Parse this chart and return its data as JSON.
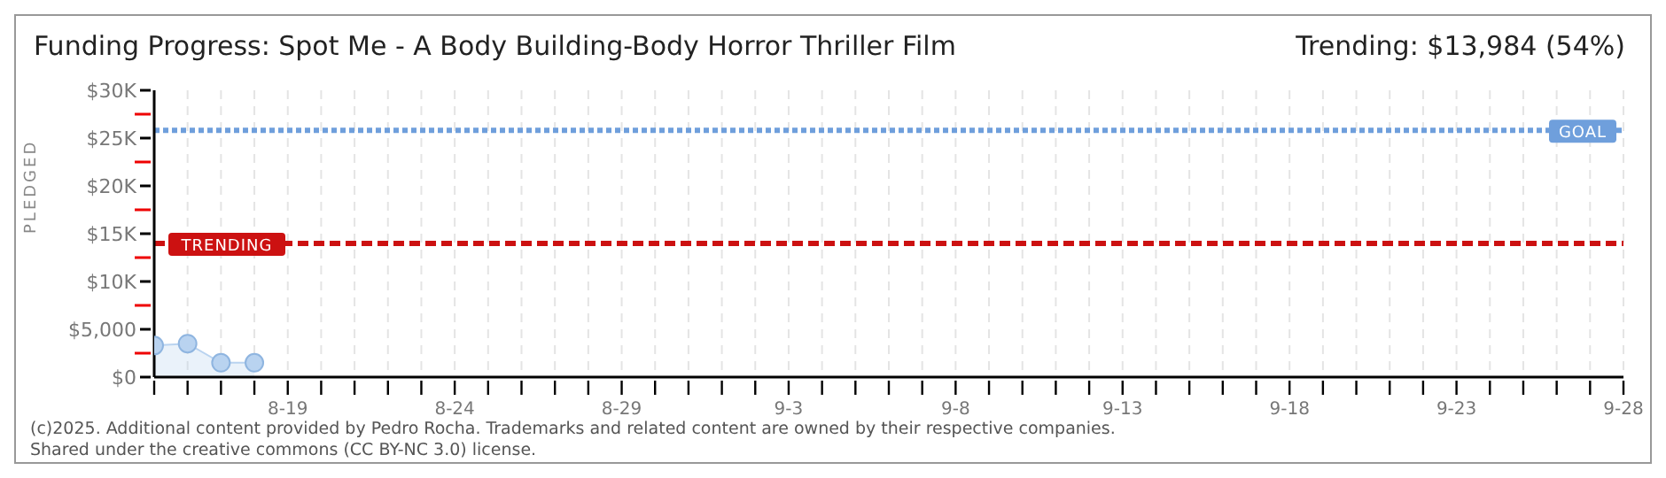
{
  "chart_data": {
    "type": "area",
    "title": "Funding Progress: Spot Me - A Body Building-Body Horror Thriller Film",
    "ylabel": "PLEDGED",
    "annotations": [
      "Trending: $13,984 (54%)",
      "(c)2025. Additional content provided by Pedro Rocha. Trademarks and related content are owned by their respective companies.",
      "Shared under the creative commons (CC BY-NC 3.0) license."
    ],
    "x": [
      "--08-15",
      "--08-16",
      "--08-17",
      "--08-18"
    ],
    "series": [
      {
        "color": "#b9d3f0",
        "values": [
          3300,
          3500,
          1500,
          1500
        ]
      }
    ],
    "marker": "circle",
    "grid": true,
    "xlim": [
      "--08-15",
      "--09-28"
    ],
    "xticks": [
      {
        "value": "--08-15",
        "label": null
      },
      {
        "value": "--08-16",
        "label": null
      },
      {
        "value": "--08-17",
        "label": null
      },
      {
        "value": "--08-18",
        "label": null
      },
      {
        "value": "--08-19",
        "label": "8-19"
      },
      {
        "value": "--08-20",
        "label": null
      },
      {
        "value": "--08-21",
        "label": null
      },
      {
        "value": "--08-22",
        "label": null
      },
      {
        "value": "--08-23",
        "label": null
      },
      {
        "value": "--08-24",
        "label": "8-24"
      },
      {
        "value": "--08-25",
        "label": null
      },
      {
        "value": "--08-26",
        "label": null
      },
      {
        "value": "--08-27",
        "label": null
      },
      {
        "value": "--08-28",
        "label": null
      },
      {
        "value": "--08-29",
        "label": "8-29"
      },
      {
        "value": "--08-30",
        "label": null
      },
      {
        "value": "--08-31",
        "label": null
      },
      {
        "value": "--09-01",
        "label": null
      },
      {
        "value": "--09-02",
        "label": null
      },
      {
        "value": "--09-03",
        "label": "9-3"
      },
      {
        "value": "--09-04",
        "label": null
      },
      {
        "value": "--09-05",
        "label": null
      },
      {
        "value": "--09-06",
        "label": null
      },
      {
        "value": "--09-07",
        "label": null
      },
      {
        "value": "--09-08",
        "label": "9-8"
      },
      {
        "value": "--09-09",
        "label": null
      },
      {
        "value": "--09-10",
        "label": null
      },
      {
        "value": "--09-11",
        "label": null
      },
      {
        "value": "--09-12",
        "label": null
      },
      {
        "value": "--09-13",
        "label": "9-13"
      },
      {
        "value": "--09-14",
        "label": null
      },
      {
        "value": "--09-15",
        "label": null
      },
      {
        "value": "--09-16",
        "label": null
      },
      {
        "value": "--09-17",
        "label": null
      },
      {
        "value": "--09-18",
        "label": "9-18"
      },
      {
        "value": "--09-19",
        "label": null
      },
      {
        "value": "--09-20",
        "label": null
      },
      {
        "value": "--09-21",
        "label": null
      },
      {
        "value": "--09-22",
        "label": null
      },
      {
        "value": "--09-23",
        "label": "9-23"
      },
      {
        "value": "--09-24",
        "label": null
      },
      {
        "value": "--09-25",
        "label": null
      },
      {
        "value": "--09-26",
        "label": null
      },
      {
        "value": "--09-27",
        "label": null
      },
      {
        "value": "--09-28",
        "label": "9-28"
      }
    ],
    "ylim": [
      0,
      30000
    ],
    "yticks": [
      {
        "value": 0,
        "label": "$0"
      },
      {
        "value": 2500,
        "label": null
      },
      {
        "value": 5000,
        "label": "$5,000"
      },
      {
        "value": 7500,
        "label": null
      },
      {
        "value": 10000,
        "label": "$10K"
      },
      {
        "value": 12500,
        "label": null
      },
      {
        "value": 15000,
        "label": "$15K"
      },
      {
        "value": 17500,
        "label": null
      },
      {
        "value": 20000,
        "label": "$20K"
      },
      {
        "value": 22500,
        "label": null
      },
      {
        "value": 25000,
        "label": "$25K"
      },
      {
        "value": 27500,
        "label": null
      },
      {
        "value": 30000,
        "label": "$30K"
      }
    ],
    "ref_lines": [
      {
        "axis": "y",
        "value": 25800,
        "label": "GOAL",
        "color": "#6f9fdc",
        "line_style": "dotted"
      },
      {
        "axis": "y",
        "value": 13984,
        "label": "TRENDING",
        "color": "#cc1111",
        "line_style": "dashed"
      }
    ]
  }
}
